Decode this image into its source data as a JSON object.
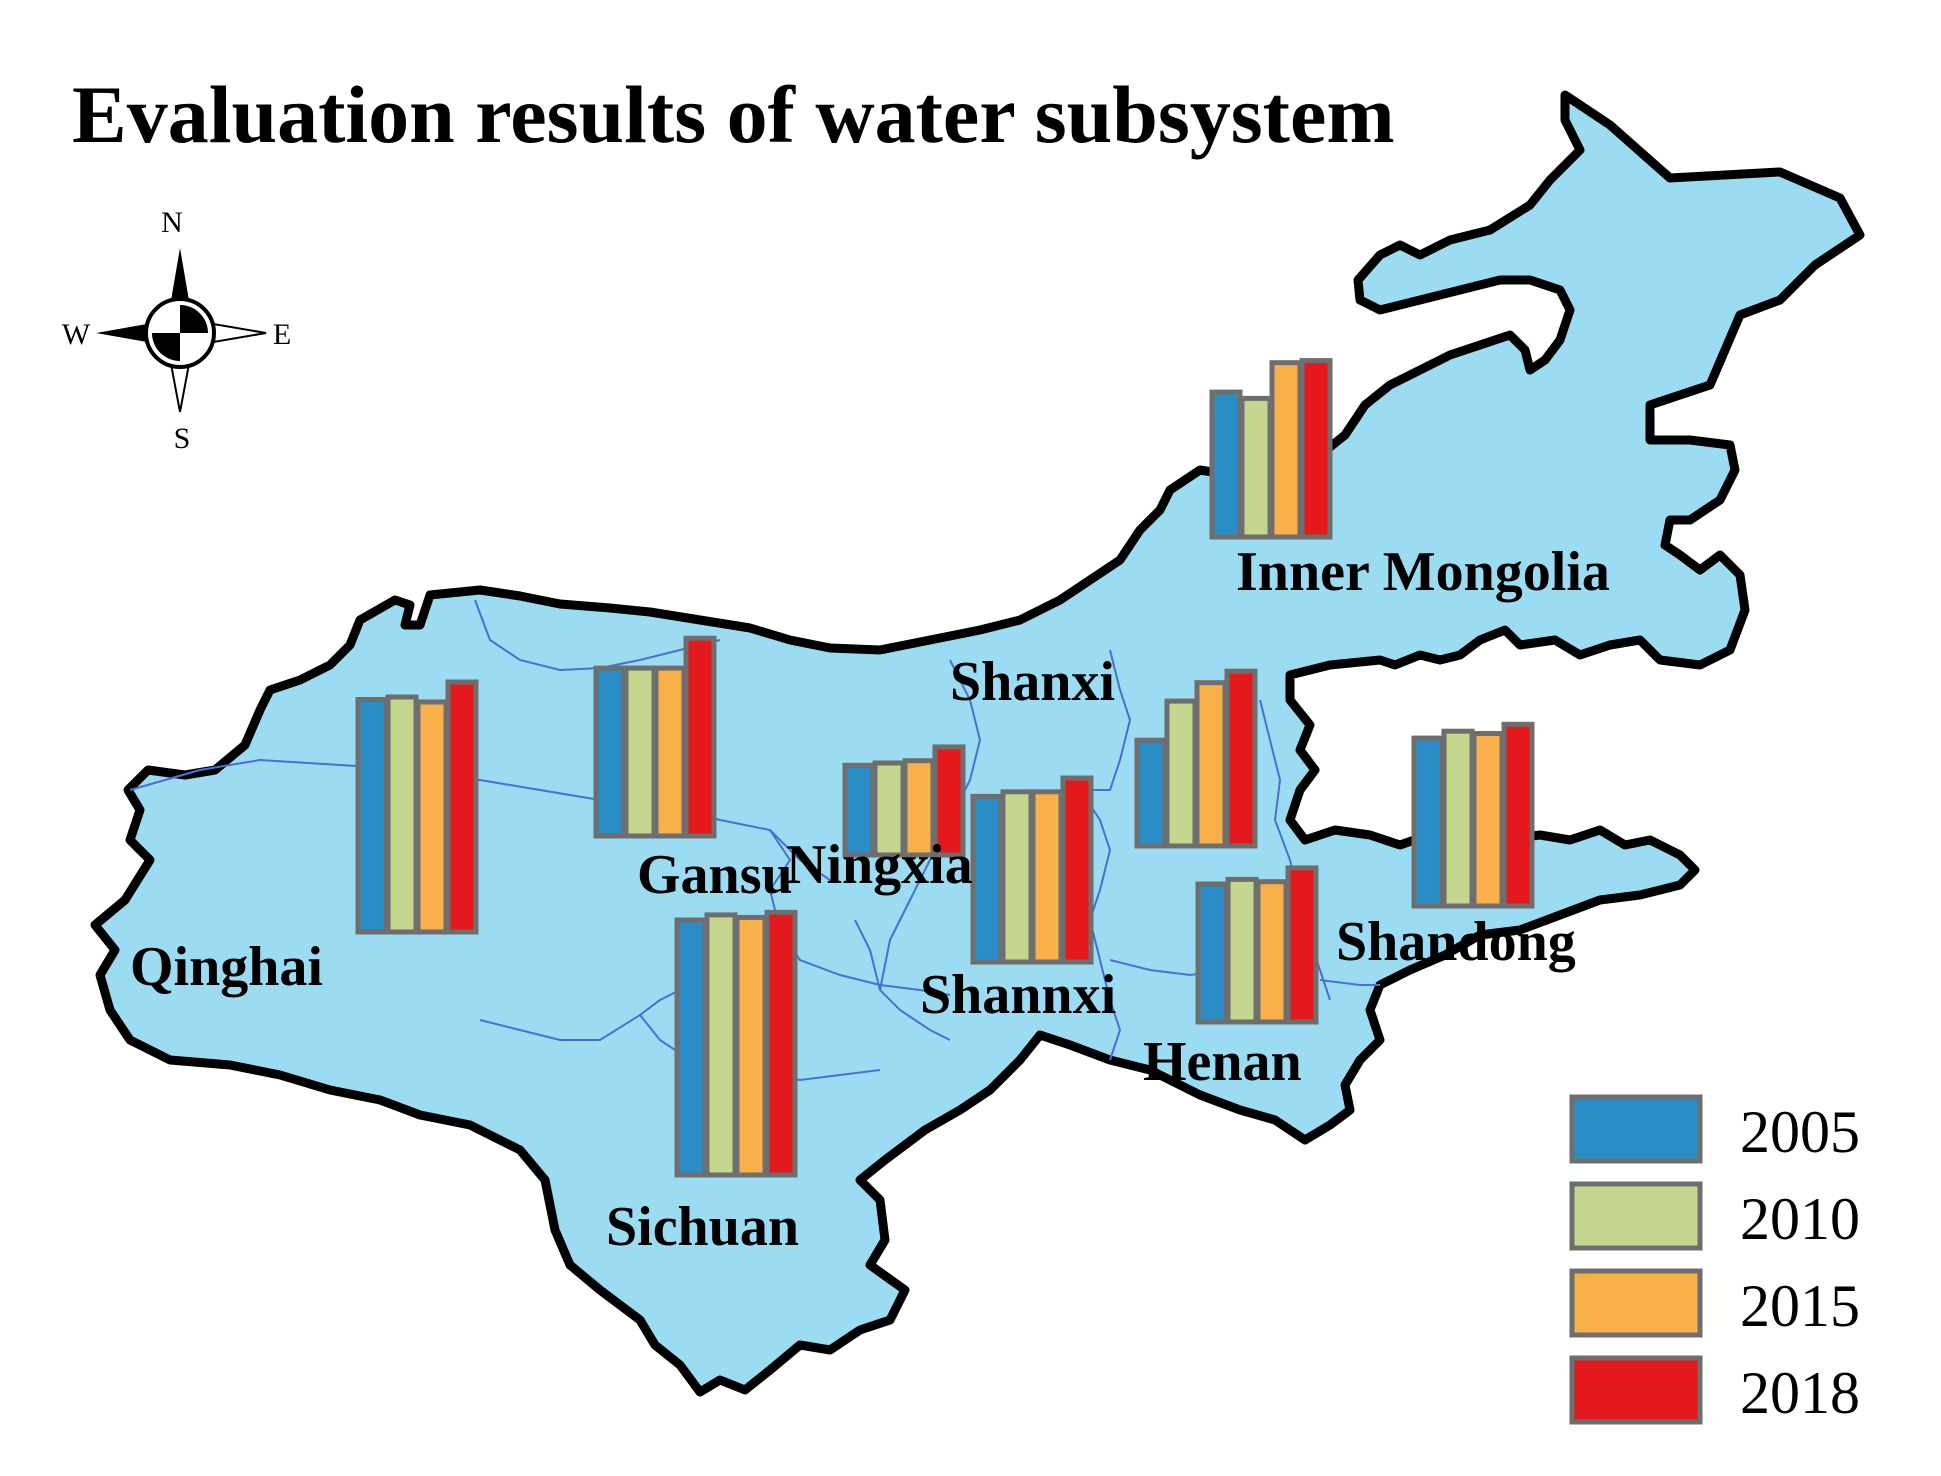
{
  "title": "Evaluation results of water subsystem",
  "compass": {
    "north": "N",
    "south": "S",
    "east": "E",
    "west": "W"
  },
  "colors": {
    "land": "#9bdcf2",
    "outline": "#000000",
    "province_border": "#4a6fd0",
    "bar_stroke": "#6e6e6e",
    "2005": "#2a8dc6",
    "2010": "#c4d68d",
    "2015": "#f8b04a",
    "2018": "#e3191c"
  },
  "legend": {
    "items": [
      {
        "label": "2005",
        "color": "#2a8dc6"
      },
      {
        "label": "2010",
        "color": "#c4d68d"
      },
      {
        "label": "2015",
        "color": "#f8b04a"
      },
      {
        "label": "2018",
        "color": "#e3191c"
      }
    ]
  },
  "chart_data": {
    "type": "bar",
    "categories": [
      "2005",
      "2010",
      "2015",
      "2018"
    ],
    "series": [
      {
        "name": "Inner Mongolia",
        "values": [
          0.69,
          0.66,
          0.83,
          0.84
        ]
      },
      {
        "name": "Qinghai",
        "values": [
          0.93,
          0.94,
          0.92,
          1.0
        ]
      },
      {
        "name": "Gansu",
        "values": [
          0.73,
          0.73,
          0.73,
          0.86
        ]
      },
      {
        "name": "Ningxia",
        "values": [
          0.39,
          0.4,
          0.41,
          0.47
        ]
      },
      {
        "name": "Shanxi",
        "values": [
          0.46,
          0.63,
          0.71,
          0.76
        ]
      },
      {
        "name": "Shannxi",
        "values": [
          0.72,
          0.74,
          0.74,
          0.8
        ]
      },
      {
        "name": "Henan",
        "values": [
          0.6,
          0.62,
          0.61,
          0.67
        ]
      },
      {
        "name": "Shandong",
        "values": [
          0.73,
          0.76,
          0.75,
          0.79
        ]
      },
      {
        "name": "Sichuan",
        "values": [
          1.0,
          1.02,
          1.01,
          1.03
        ]
      }
    ]
  }
}
